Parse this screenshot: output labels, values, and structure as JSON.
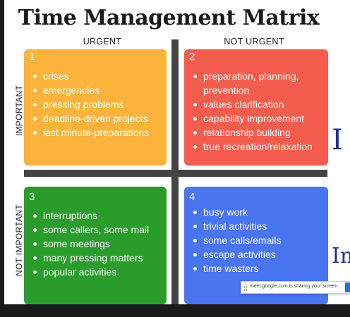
{
  "title": "Time Management Matrix",
  "columns": {
    "urgent": "URGENT",
    "not_urgent": "NOT URGENT"
  },
  "rows": {
    "important": "IMPORTANT",
    "not_important": "NOT IMPORTANT"
  },
  "colors": {
    "q1": "#fbb33c",
    "q2": "#f45d4d",
    "q3": "#2a9c2c",
    "q4": "#4a75f0",
    "divider": "#444444"
  },
  "quadrants": [
    {
      "number": "1",
      "items": [
        "crises",
        "emergencies",
        "pressing problems",
        "deadline-driven projects",
        "last minute-preparations"
      ]
    },
    {
      "number": "2",
      "items": [
        "preparation, planning, prevention",
        "values clarification",
        "capability improvement",
        "relationship building",
        "true recreation/relaxation"
      ]
    },
    {
      "number": "3",
      "items": [
        "interruptions",
        "some callers, some mail",
        "some meetings",
        "many pressing matters",
        "popular activities"
      ]
    },
    {
      "number": "4",
      "items": [
        "busy work",
        "trivial activities",
        "some calls/emails",
        "escape activities",
        "time wasters"
      ]
    }
  ],
  "side_fragments": [
    "I",
    "Im"
  ],
  "screen_share": {
    "text": "meet.google.com is sharing your screen."
  }
}
